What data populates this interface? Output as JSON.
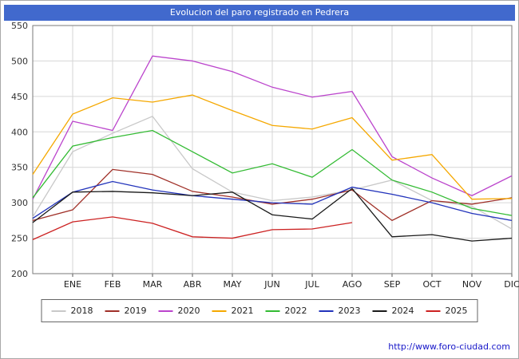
{
  "title": "Evolucion del paro registrado en Pedrera",
  "footer": {
    "url": "http://www.foro-ciudad.com"
  },
  "chart_data": {
    "type": "line",
    "title": "Evolucion del paro registrado en Pedrera",
    "xlabel": "",
    "ylabel": "",
    "ylim": [
      200,
      550
    ],
    "ytick_step": 50,
    "grid": true,
    "legend_position": "bottom",
    "x_labels": [
      "",
      "ENE",
      "FEB",
      "MAR",
      "ABR",
      "MAY",
      "JUN",
      "JUL",
      "AGO",
      "SEP",
      "OCT",
      "NOV",
      "DIC"
    ],
    "series": [
      {
        "name": "2018",
        "color": "#c8c8c8",
        "values": [
          280,
          372,
          398,
          422,
          348,
          315,
          303,
          308,
          318,
          332,
          303,
          295,
          263
        ]
      },
      {
        "name": "2019",
        "color": "#a03028",
        "values": [
          275,
          290,
          347,
          340,
          316,
          308,
          298,
          305,
          318,
          275,
          303,
          298,
          307
        ]
      },
      {
        "name": "2020",
        "color": "#bb44cc",
        "values": [
          305,
          415,
          402,
          507,
          500,
          485,
          463,
          449,
          457,
          365,
          335,
          310,
          338
        ]
      },
      {
        "name": "2021",
        "color": "#f5a800",
        "values": [
          340,
          425,
          448,
          442,
          452,
          430,
          409,
          404,
          420,
          360,
          368,
          305,
          306
        ]
      },
      {
        "name": "2022",
        "color": "#33bb33",
        "values": [
          307,
          380,
          392,
          402,
          372,
          342,
          355,
          336,
          375,
          332,
          315,
          292,
          282
        ]
      },
      {
        "name": "2023",
        "color": "#2233bb",
        "values": [
          278,
          315,
          330,
          318,
          310,
          305,
          300,
          298,
          322,
          312,
          300,
          285,
          275
        ]
      },
      {
        "name": "2024",
        "color": "#1a1a1a",
        "values": [
          272,
          315,
          316,
          314,
          310,
          315,
          283,
          277,
          320,
          252,
          255,
          246,
          250
        ]
      },
      {
        "name": "2025",
        "color": "#cc2222",
        "values": [
          248,
          273,
          280,
          271,
          252,
          250,
          262,
          263,
          272,
          null,
          null,
          null,
          null
        ]
      }
    ]
  }
}
